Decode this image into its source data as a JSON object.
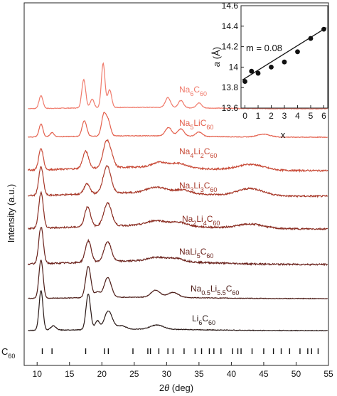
{
  "chart_data": [
    {
      "type": "line",
      "xlabel": "2θ (deg)",
      "ylabel": "Intensity (a.u.)",
      "xlim": [
        8,
        55
      ],
      "x_ticks": [
        10,
        15,
        20,
        25,
        30,
        35,
        40,
        45,
        50,
        55
      ],
      "reference_label": "C60",
      "reference_peaks": [
        10.8,
        12.3,
        17.5,
        20.4,
        21.0,
        24.8,
        27.1,
        27.5,
        28.8,
        30.2,
        31.0,
        32.7,
        34.4,
        35.4,
        36.6,
        37.3,
        38.4,
        40.2,
        41.0,
        41.5,
        43.2,
        45.0,
        46.5,
        47.7,
        49.0,
        50.6,
        51.8,
        52.4,
        53.4
      ],
      "series": [
        {
          "label": "Na6C60",
          "label_html": "Na<tspan baseline-shift='sub' font-size='9'>6</tspan>C<tspan baseline-shift='sub' font-size='9'>60</tspan>",
          "color": "#f07b6c",
          "peaks": [
            [
              10.6,
              18,
              0.3
            ],
            [
              17.2,
              40,
              0.3
            ],
            [
              18.5,
              12,
              0.3
            ],
            [
              20.2,
              62,
              0.28
            ],
            [
              21.2,
              25,
              0.3
            ],
            [
              30.2,
              14,
              0.4
            ],
            [
              32.2,
              10,
              0.4
            ],
            [
              35.0,
              7,
              0.4
            ]
          ]
        },
        {
          "label": "Na5LiC60",
          "label_html": "Na<tspan baseline-shift='sub' font-size='9'>5</tspan>LiC<tspan baseline-shift='sub' font-size='9'>60</tspan>",
          "color": "#e4614e",
          "peaks": [
            [
              10.6,
              18,
              0.3
            ],
            [
              12.3,
              6,
              0.3
            ],
            [
              17.3,
              22,
              0.35
            ],
            [
              20.3,
              30,
              0.35
            ],
            [
              21.0,
              20,
              0.35
            ],
            [
              30.3,
              12,
              0.5
            ],
            [
              32.2,
              10,
              0.5
            ],
            [
              35.0,
              6,
              0.5
            ],
            [
              45.0,
              4,
              1.0
            ]
          ]
        },
        {
          "label": "Na4Li2C60",
          "label_html": "Na<tspan baseline-shift='sub' font-size='9'>4</tspan>Li<tspan baseline-shift='sub' font-size='9'>2</tspan>C<tspan baseline-shift='sub' font-size='9'>60</tspan>",
          "color": "#c84a37",
          "peaks": [
            [
              10.6,
              30,
              0.35
            ],
            [
              17.5,
              24,
              0.45
            ],
            [
              20.6,
              30,
              0.5
            ],
            [
              21.3,
              18,
              0.5
            ],
            [
              29.0,
              7,
              1.2
            ],
            [
              32.0,
              6,
              1.2
            ],
            [
              43.0,
              8,
              2.0
            ]
          ]
        },
        {
          "label": "Na3Li3C60",
          "label_html": "Na<tspan baseline-shift='sub' font-size='9'>3</tspan>Li<tspan baseline-shift='sub' font-size='9'>3</tspan>C<tspan baseline-shift='sub' font-size='9'>60</tspan>",
          "color": "#a83a2b",
          "peaks": [
            [
              10.6,
              40,
              0.35
            ],
            [
              17.7,
              14,
              0.45
            ],
            [
              20.8,
              38,
              0.6
            ],
            [
              28.5,
              8,
              1.5
            ],
            [
              32.5,
              5,
              1.2
            ],
            [
              43.0,
              10,
              2.0
            ]
          ]
        },
        {
          "label": "Na2Li4C60",
          "label_html": "Na<tspan baseline-shift='sub' font-size='9'>2</tspan>Li<tspan baseline-shift='sub' font-size='9'>4</tspan>C<tspan baseline-shift='sub' font-size='9'>60</tspan>",
          "color": "#8a2d22",
          "peaks": [
            [
              10.6,
              50,
              0.35
            ],
            [
              17.8,
              28,
              0.45
            ],
            [
              20.9,
              32,
              0.6
            ],
            [
              28.5,
              7,
              1.5
            ],
            [
              32.0,
              5,
              1.2
            ],
            [
              43.0,
              6,
              2.0
            ]
          ]
        },
        {
          "label": "NaLi5C60",
          "label_html": "NaLi<tspan baseline-shift='sub' font-size='9'>5</tspan>C<tspan baseline-shift='sub' font-size='9'>60</tspan>",
          "color": "#6b231d",
          "peaks": [
            [
              10.6,
              52,
              0.35
            ],
            [
              17.9,
              30,
              0.45
            ],
            [
              20.9,
              28,
              0.55
            ],
            [
              28.5,
              5,
              1.5
            ],
            [
              31.5,
              4,
              1.2
            ]
          ]
        },
        {
          "label": "Na0.5Li5.5C60",
          "label_html": "Na<tspan baseline-shift='sub' font-size='9'>0.5</tspan>Li<tspan baseline-shift='sub' font-size='9'>5.5</tspan>C<tspan baseline-shift='sub' font-size='9'>60</tspan>",
          "color": "#4d1d18",
          "peaks": [
            [
              10.6,
              54,
              0.32
            ],
            [
              17.9,
              44,
              0.4
            ],
            [
              19.3,
              8,
              0.4
            ],
            [
              20.9,
              28,
              0.55
            ],
            [
              28.3,
              10,
              0.7
            ],
            [
              31.0,
              7,
              0.8
            ]
          ]
        },
        {
          "label": "Li6C60",
          "label_html": "Li<tspan baseline-shift='sub' font-size='9'>6</tspan>C<tspan baseline-shift='sub' font-size='9'>60</tspan>",
          "color": "#2a1a18",
          "peaks": [
            [
              10.6,
              56,
              0.3
            ],
            [
              12.5,
              6,
              0.4
            ],
            [
              17.9,
              50,
              0.35
            ],
            [
              19.3,
              12,
              0.35
            ],
            [
              21.0,
              26,
              0.6
            ],
            [
              23.0,
              5,
              0.7
            ],
            [
              28.5,
              6,
              1.0
            ]
          ]
        }
      ]
    },
    {
      "type": "scatter",
      "xlabel": "x",
      "ylabel": "a (Å)",
      "xlim": [
        -0.3,
        6.3
      ],
      "ylim": [
        13.6,
        14.6
      ],
      "x_ticks": [
        0,
        1,
        2,
        3,
        4,
        5,
        6
      ],
      "y_ticks": [
        13.6,
        13.8,
        14,
        14.2,
        14.4,
        14.6
      ],
      "annotation": "m = 0.08",
      "x": [
        0,
        0.5,
        1,
        2,
        3,
        4,
        5,
        6
      ],
      "y": [
        13.86,
        13.96,
        13.94,
        14.0,
        14.05,
        14.15,
        14.28,
        14.37
      ],
      "fit": {
        "slope": 0.08,
        "intercept": 13.89
      }
    }
  ]
}
